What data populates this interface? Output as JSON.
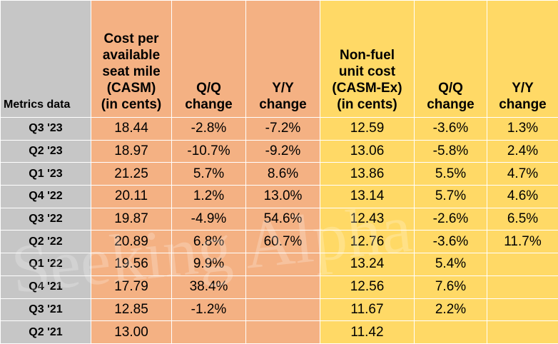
{
  "table": {
    "header": {
      "label": "Metrics data",
      "casm": [
        "Cost per",
        "available",
        "seat mile",
        "(CASM)",
        "(in cents)"
      ],
      "casm_qq": [
        "Q/Q",
        "change"
      ],
      "casm_yy": [
        "Y/Y",
        "change"
      ],
      "casmex": [
        "Non-fuel",
        "unit cost",
        "(CASM-Ex)",
        "(in cents)"
      ],
      "casmex_qq": [
        "Q/Q",
        "change"
      ],
      "casmex_yy": [
        "Y/Y",
        "change"
      ]
    },
    "rows": [
      {
        "period": "Q3 '23",
        "casm": "18.44",
        "casm_qq": "-2.8%",
        "casm_yy": "-7.2%",
        "casmex": "12.59",
        "casmex_qq": "-3.6%",
        "casmex_yy": "1.3%"
      },
      {
        "period": "Q2 '23",
        "casm": "18.97",
        "casm_qq": "-10.7%",
        "casm_yy": "-9.2%",
        "casmex": "13.06",
        "casmex_qq": "-5.8%",
        "casmex_yy": "2.4%"
      },
      {
        "period": "Q1 '23",
        "casm": "21.25",
        "casm_qq": "5.7%",
        "casm_yy": "8.6%",
        "casmex": "13.86",
        "casmex_qq": "5.5%",
        "casmex_yy": "4.7%"
      },
      {
        "period": "Q4 '22",
        "casm": "20.11",
        "casm_qq": "1.2%",
        "casm_yy": "13.0%",
        "casmex": "13.14",
        "casmex_qq": "5.7%",
        "casmex_yy": "4.6%"
      },
      {
        "period": "Q3 '22",
        "casm": "19.87",
        "casm_qq": "-4.9%",
        "casm_yy": "54.6%",
        "casmex": "12.43",
        "casmex_qq": "-2.6%",
        "casmex_yy": "6.5%"
      },
      {
        "period": "Q2 '22",
        "casm": "20.89",
        "casm_qq": "6.8%",
        "casm_yy": "60.7%",
        "casmex": "12.76",
        "casmex_qq": "-3.6%",
        "casmex_yy": "11.7%"
      },
      {
        "period": "Q1 '22",
        "casm": "19.56",
        "casm_qq": "9.9%",
        "casm_yy": "",
        "casmex": "13.24",
        "casmex_qq": "5.4%",
        "casmex_yy": ""
      },
      {
        "period": "Q4 '21",
        "casm": "17.79",
        "casm_qq": "38.4%",
        "casm_yy": "",
        "casmex": "12.56",
        "casmex_qq": "7.6%",
        "casmex_yy": ""
      },
      {
        "period": "Q3 '21",
        "casm": "12.85",
        "casm_qq": "-1.2%",
        "casm_yy": "",
        "casmex": "11.67",
        "casmex_qq": "2.2%",
        "casmex_yy": ""
      },
      {
        "period": "Q2 '21",
        "casm": "13.00",
        "casm_qq": "",
        "casm_yy": "",
        "casmex": "11.42",
        "casmex_qq": "",
        "casmex_yy": ""
      }
    ]
  },
  "watermark": "Seeking Alpha",
  "colors": {
    "label_bg": "#c6c6c6",
    "casm_bg": "#f4b183",
    "casmex_bg": "#ffd966"
  }
}
